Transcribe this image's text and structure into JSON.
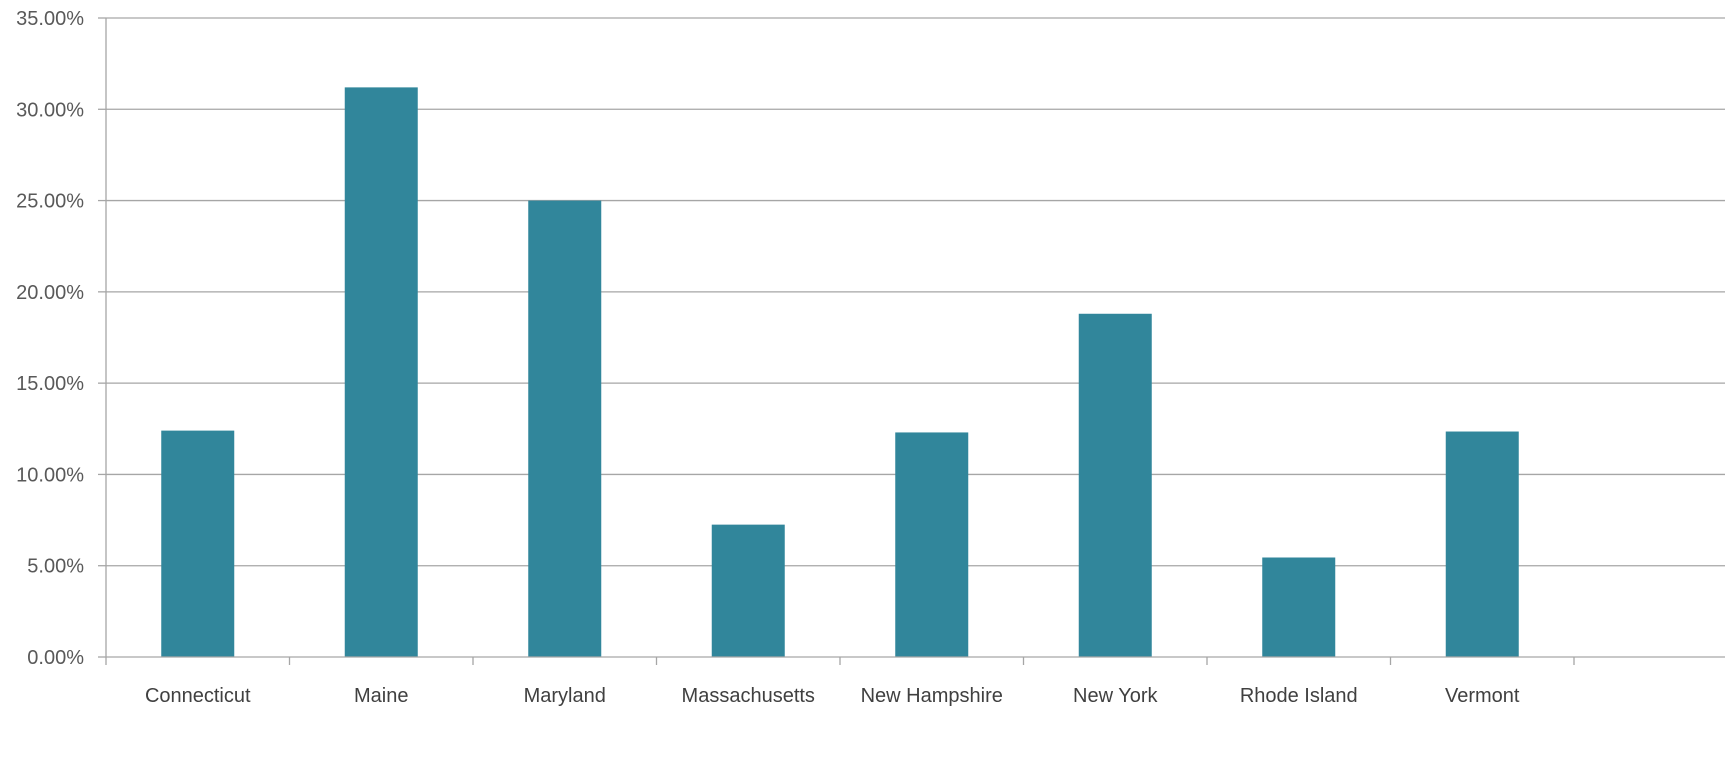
{
  "chart_data": {
    "type": "bar",
    "title": "",
    "xlabel": "",
    "ylabel": "",
    "categories": [
      "Connecticut",
      "Maine",
      "Maryland",
      "Massachusetts",
      "New Hampshire",
      "New York",
      "Rhode Island",
      "Vermont"
    ],
    "values": [
      12.4,
      31.2,
      25.0,
      7.25,
      12.3,
      18.8,
      5.45,
      12.35
    ],
    "ylim": [
      0,
      35
    ],
    "y_ticks": [
      0,
      5,
      10,
      15,
      20,
      25,
      30,
      35
    ],
    "y_tick_labels": [
      "0.00%",
      "5.00%",
      "10.00%",
      "15.00%",
      "20.00%",
      "25.00%",
      "30.00%",
      "35.00%"
    ],
    "grid": true,
    "legend": "none",
    "bar_color": "#31869b"
  }
}
